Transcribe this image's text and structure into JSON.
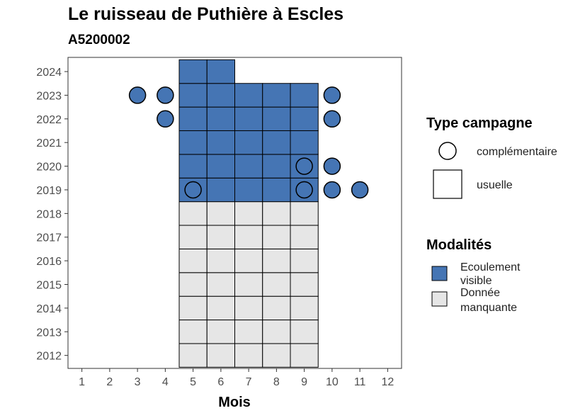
{
  "chart_data": {
    "type": "heatmap",
    "title": "Le ruisseau de Puthière à Escles",
    "subtitle": "A5200002",
    "xlabel": "Mois",
    "ylabel": "",
    "x_ticks": [
      1,
      2,
      3,
      4,
      5,
      6,
      7,
      8,
      9,
      10,
      11,
      12
    ],
    "y_ticks": [
      2012,
      2013,
      2014,
      2015,
      2016,
      2017,
      2018,
      2019,
      2020,
      2021,
      2022,
      2023,
      2024
    ],
    "xlim": [
      0.5,
      12.5
    ],
    "ylim": [
      2011.45,
      2024.6
    ],
    "colors": {
      "Ecoulement visible": "#4575b4",
      "Donnée manquante": "#e6e6e6"
    },
    "usual_campaigns": [
      {
        "year": 2012,
        "month": 5,
        "modality": "Donnée manquante"
      },
      {
        "year": 2012,
        "month": 6,
        "modality": "Donnée manquante"
      },
      {
        "year": 2012,
        "month": 7,
        "modality": "Donnée manquante"
      },
      {
        "year": 2012,
        "month": 8,
        "modality": "Donnée manquante"
      },
      {
        "year": 2012,
        "month": 9,
        "modality": "Donnée manquante"
      },
      {
        "year": 2013,
        "month": 5,
        "modality": "Donnée manquante"
      },
      {
        "year": 2013,
        "month": 6,
        "modality": "Donnée manquante"
      },
      {
        "year": 2013,
        "month": 7,
        "modality": "Donnée manquante"
      },
      {
        "year": 2013,
        "month": 8,
        "modality": "Donnée manquante"
      },
      {
        "year": 2013,
        "month": 9,
        "modality": "Donnée manquante"
      },
      {
        "year": 2014,
        "month": 5,
        "modality": "Donnée manquante"
      },
      {
        "year": 2014,
        "month": 6,
        "modality": "Donnée manquante"
      },
      {
        "year": 2014,
        "month": 7,
        "modality": "Donnée manquante"
      },
      {
        "year": 2014,
        "month": 8,
        "modality": "Donnée manquante"
      },
      {
        "year": 2014,
        "month": 9,
        "modality": "Donnée manquante"
      },
      {
        "year": 2015,
        "month": 5,
        "modality": "Donnée manquante"
      },
      {
        "year": 2015,
        "month": 6,
        "modality": "Donnée manquante"
      },
      {
        "year": 2015,
        "month": 7,
        "modality": "Donnée manquante"
      },
      {
        "year": 2015,
        "month": 8,
        "modality": "Donnée manquante"
      },
      {
        "year": 2015,
        "month": 9,
        "modality": "Donnée manquante"
      },
      {
        "year": 2016,
        "month": 5,
        "modality": "Donnée manquante"
      },
      {
        "year": 2016,
        "month": 6,
        "modality": "Donnée manquante"
      },
      {
        "year": 2016,
        "month": 7,
        "modality": "Donnée manquante"
      },
      {
        "year": 2016,
        "month": 8,
        "modality": "Donnée manquante"
      },
      {
        "year": 2016,
        "month": 9,
        "modality": "Donnée manquante"
      },
      {
        "year": 2017,
        "month": 5,
        "modality": "Donnée manquante"
      },
      {
        "year": 2017,
        "month": 6,
        "modality": "Donnée manquante"
      },
      {
        "year": 2017,
        "month": 7,
        "modality": "Donnée manquante"
      },
      {
        "year": 2017,
        "month": 8,
        "modality": "Donnée manquante"
      },
      {
        "year": 2017,
        "month": 9,
        "modality": "Donnée manquante"
      },
      {
        "year": 2018,
        "month": 5,
        "modality": "Donnée manquante"
      },
      {
        "year": 2018,
        "month": 6,
        "modality": "Donnée manquante"
      },
      {
        "year": 2018,
        "month": 7,
        "modality": "Donnée manquante"
      },
      {
        "year": 2018,
        "month": 8,
        "modality": "Donnée manquante"
      },
      {
        "year": 2018,
        "month": 9,
        "modality": "Donnée manquante"
      },
      {
        "year": 2019,
        "month": 5,
        "modality": "Ecoulement visible"
      },
      {
        "year": 2019,
        "month": 6,
        "modality": "Ecoulement visible"
      },
      {
        "year": 2019,
        "month": 7,
        "modality": "Ecoulement visible"
      },
      {
        "year": 2019,
        "month": 8,
        "modality": "Ecoulement visible"
      },
      {
        "year": 2019,
        "month": 9,
        "modality": "Ecoulement visible"
      },
      {
        "year": 2020,
        "month": 5,
        "modality": "Ecoulement visible"
      },
      {
        "year": 2020,
        "month": 6,
        "modality": "Ecoulement visible"
      },
      {
        "year": 2020,
        "month": 7,
        "modality": "Ecoulement visible"
      },
      {
        "year": 2020,
        "month": 8,
        "modality": "Ecoulement visible"
      },
      {
        "year": 2020,
        "month": 9,
        "modality": "Ecoulement visible"
      },
      {
        "year": 2021,
        "month": 5,
        "modality": "Ecoulement visible"
      },
      {
        "year": 2021,
        "month": 6,
        "modality": "Ecoulement visible"
      },
      {
        "year": 2021,
        "month": 7,
        "modality": "Ecoulement visible"
      },
      {
        "year": 2021,
        "month": 8,
        "modality": "Ecoulement visible"
      },
      {
        "year": 2021,
        "month": 9,
        "modality": "Ecoulement visible"
      },
      {
        "year": 2022,
        "month": 5,
        "modality": "Ecoulement visible"
      },
      {
        "year": 2022,
        "month": 6,
        "modality": "Ecoulement visible"
      },
      {
        "year": 2022,
        "month": 7,
        "modality": "Ecoulement visible"
      },
      {
        "year": 2022,
        "month": 8,
        "modality": "Ecoulement visible"
      },
      {
        "year": 2022,
        "month": 9,
        "modality": "Ecoulement visible"
      },
      {
        "year": 2023,
        "month": 5,
        "modality": "Ecoulement visible"
      },
      {
        "year": 2023,
        "month": 6,
        "modality": "Ecoulement visible"
      },
      {
        "year": 2023,
        "month": 7,
        "modality": "Ecoulement visible"
      },
      {
        "year": 2023,
        "month": 8,
        "modality": "Ecoulement visible"
      },
      {
        "year": 2023,
        "month": 9,
        "modality": "Ecoulement visible"
      },
      {
        "year": 2024,
        "month": 5,
        "modality": "Ecoulement visible"
      },
      {
        "year": 2024,
        "month": 6,
        "modality": "Ecoulement visible"
      }
    ],
    "complementary_campaigns": [
      {
        "year": 2023,
        "month": 3,
        "modality": "Ecoulement visible"
      },
      {
        "year": 2023,
        "month": 4,
        "modality": "Ecoulement visible"
      },
      {
        "year": 2023,
        "month": 10,
        "modality": "Ecoulement visible"
      },
      {
        "year": 2022,
        "month": 4,
        "modality": "Ecoulement visible"
      },
      {
        "year": 2022,
        "month": 10,
        "modality": "Ecoulement visible"
      },
      {
        "year": 2020,
        "month": 9,
        "modality": "Ecoulement visible"
      },
      {
        "year": 2020,
        "month": 10,
        "modality": "Ecoulement visible"
      },
      {
        "year": 2019,
        "month": 5,
        "modality": "Ecoulement visible"
      },
      {
        "year": 2019,
        "month": 9,
        "modality": "Ecoulement visible"
      },
      {
        "year": 2019,
        "month": 10,
        "modality": "Ecoulement visible"
      },
      {
        "year": 2019,
        "month": 11,
        "modality": "Ecoulement visible"
      }
    ],
    "legend": {
      "type_title": "Type campagne",
      "type_items": [
        "complémentaire",
        "usuelle"
      ],
      "modality_title": "Modalités",
      "modality_items": [
        {
          "lines": [
            "Ecoulement",
            "visible"
          ],
          "color": "#4575b4"
        },
        {
          "lines": [
            "Donnée",
            "manquante"
          ],
          "color": "#e6e6e6"
        }
      ],
      "placement": "right"
    },
    "grid": false
  }
}
